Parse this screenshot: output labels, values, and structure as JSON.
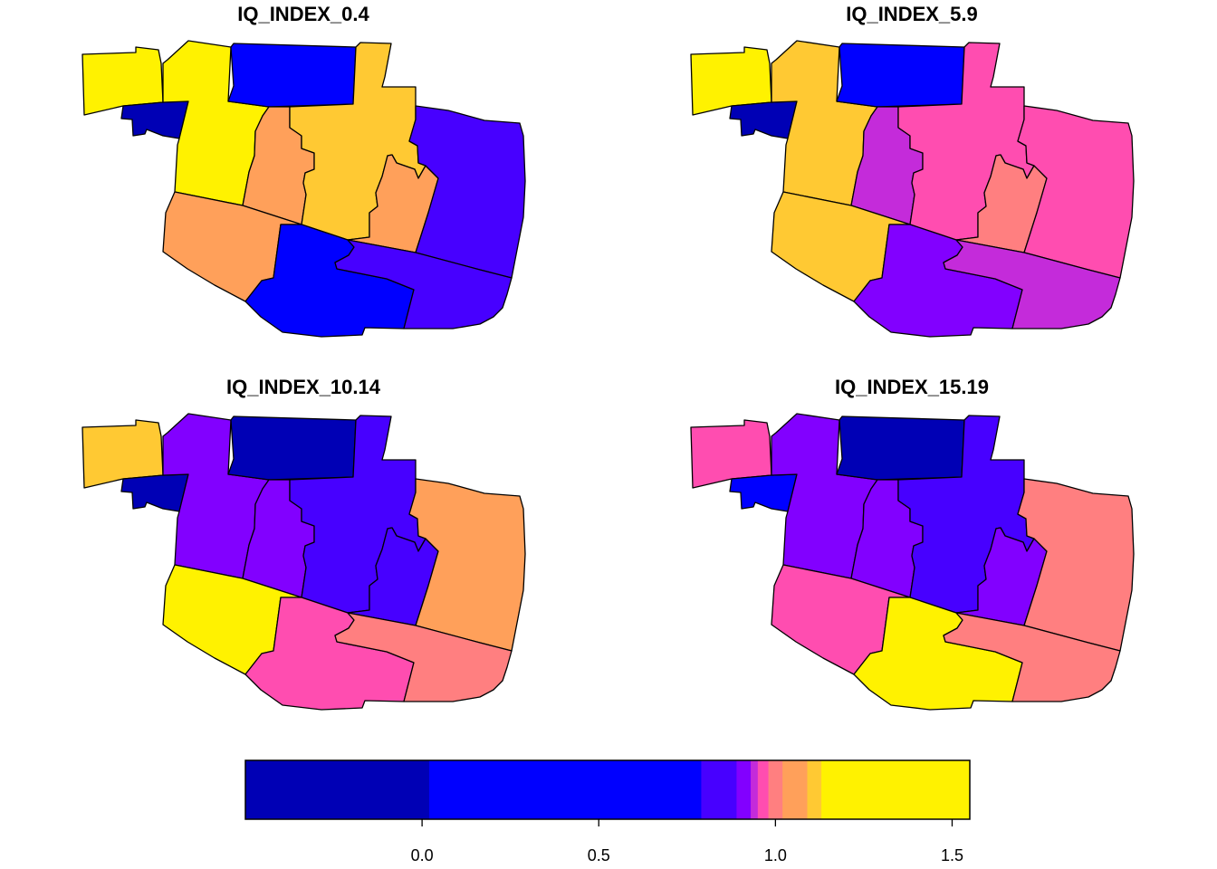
{
  "palette": {
    "navy": "#0000B5",
    "blue": "#0000FF",
    "indigo": "#4700FF",
    "violet": "#8200FF",
    "purple": "#C42BDA",
    "pink": "#FF4DB0",
    "salmon": "#FF7F80",
    "orange": "#FFA05A",
    "gold": "#FFC933",
    "yellow": "#FFF200"
  },
  "region_ids": [
    "nw_strip",
    "sw_notch",
    "west",
    "north_center",
    "center_left",
    "center_main",
    "center_right",
    "east",
    "southwest",
    "south_center",
    "southeast"
  ],
  "panels": [
    {
      "title": "IQ_INDEX_0.4",
      "colors": {
        "nw_strip": "yellow",
        "sw_notch": "navy",
        "west": "yellow",
        "north_center": "blue",
        "center_left": "orange",
        "center_main": "gold",
        "center_right": "orange",
        "east": "indigo",
        "southwest": "orange",
        "south_center": "blue",
        "southeast": "indigo"
      }
    },
    {
      "title": "IQ_INDEX_5.9",
      "colors": {
        "nw_strip": "yellow",
        "sw_notch": "navy",
        "west": "gold",
        "north_center": "blue",
        "center_left": "purple",
        "center_main": "pink",
        "center_right": "salmon",
        "east": "pink",
        "southwest": "gold",
        "south_center": "violet",
        "southeast": "purple"
      }
    },
    {
      "title": "IQ_INDEX_10.14",
      "colors": {
        "nw_strip": "gold",
        "sw_notch": "navy",
        "west": "violet",
        "north_center": "navy",
        "center_left": "violet",
        "center_main": "indigo",
        "center_right": "indigo",
        "east": "orange",
        "southwest": "yellow",
        "south_center": "pink",
        "southeast": "salmon"
      }
    },
    {
      "title": "IQ_INDEX_15.19",
      "colors": {
        "nw_strip": "pink",
        "sw_notch": "blue",
        "west": "violet",
        "north_center": "navy",
        "center_left": "violet",
        "center_main": "indigo",
        "center_right": "violet",
        "east": "salmon",
        "southwest": "pink",
        "south_center": "yellow",
        "southeast": "salmon"
      }
    }
  ],
  "legend": {
    "min": -0.5,
    "max": 1.55,
    "ticks": [
      {
        "value": 0.0,
        "label": "0.0"
      },
      {
        "value": 0.5,
        "label": "0.5"
      },
      {
        "value": 1.0,
        "label": "1.0"
      },
      {
        "value": 1.5,
        "label": "1.5"
      }
    ],
    "bands": [
      {
        "from": -0.5,
        "to": 0.02,
        "color": "navy"
      },
      {
        "from": 0.02,
        "to": 0.79,
        "color": "blue"
      },
      {
        "from": 0.79,
        "to": 0.89,
        "color": "indigo"
      },
      {
        "from": 0.89,
        "to": 0.93,
        "color": "violet"
      },
      {
        "from": 0.93,
        "to": 0.95,
        "color": "purple"
      },
      {
        "from": 0.95,
        "to": 0.98,
        "color": "pink"
      },
      {
        "from": 0.98,
        "to": 1.02,
        "color": "salmon"
      },
      {
        "from": 1.02,
        "to": 1.09,
        "color": "orange"
      },
      {
        "from": 1.09,
        "to": 1.13,
        "color": "gold"
      },
      {
        "from": 1.13,
        "to": 1.55,
        "color": "yellow"
      }
    ]
  }
}
